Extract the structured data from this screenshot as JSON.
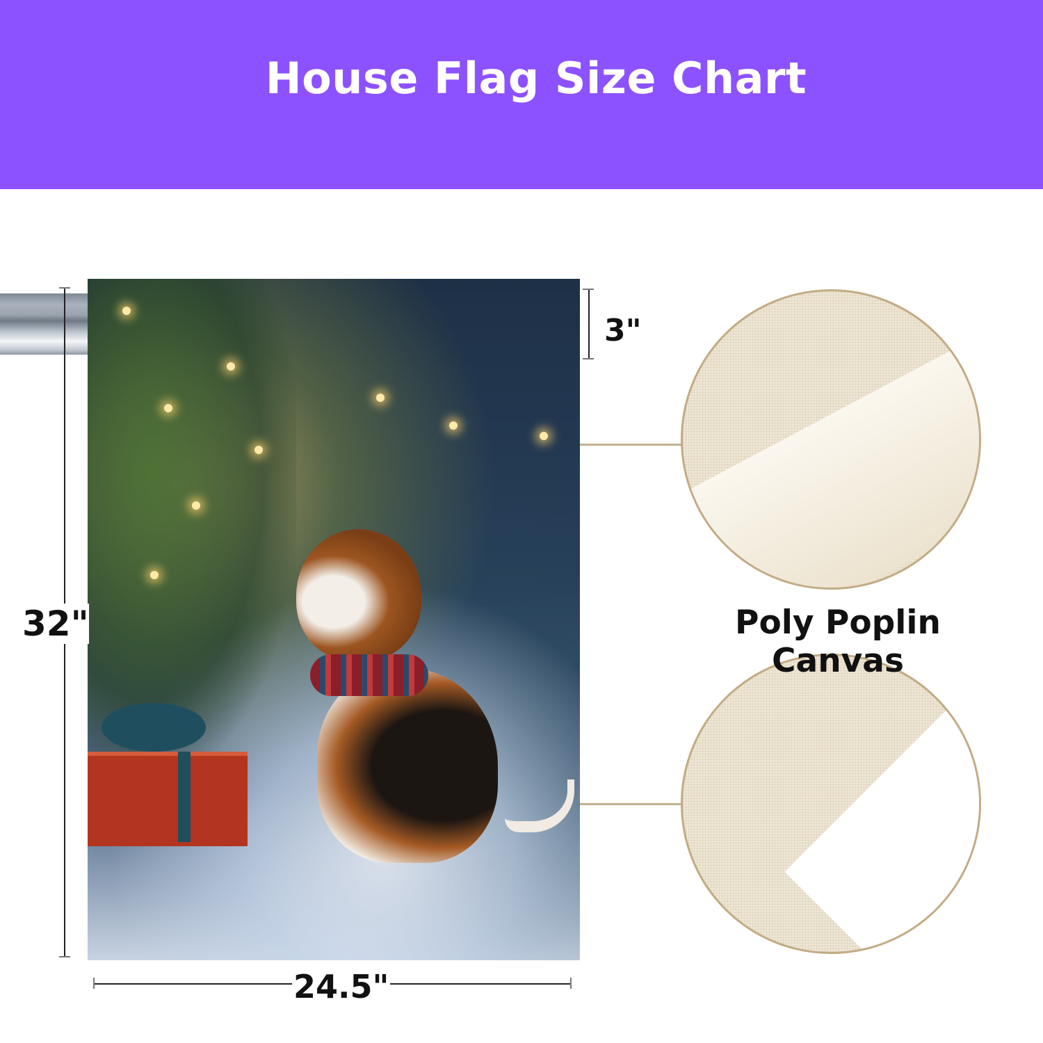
{
  "header": {
    "title": "House Flag Size Chart",
    "background_color": "#8c52ff"
  },
  "flag": {
    "image": "beagle-christmas-snow-illustration"
  },
  "dimensions": {
    "height": "32\"",
    "width": "24.5\"",
    "sleeve": "3\""
  },
  "material": {
    "label": "Poly Poplin Canvas",
    "swatch_color": "#efe7d6",
    "border_color": "#c2ab84"
  }
}
